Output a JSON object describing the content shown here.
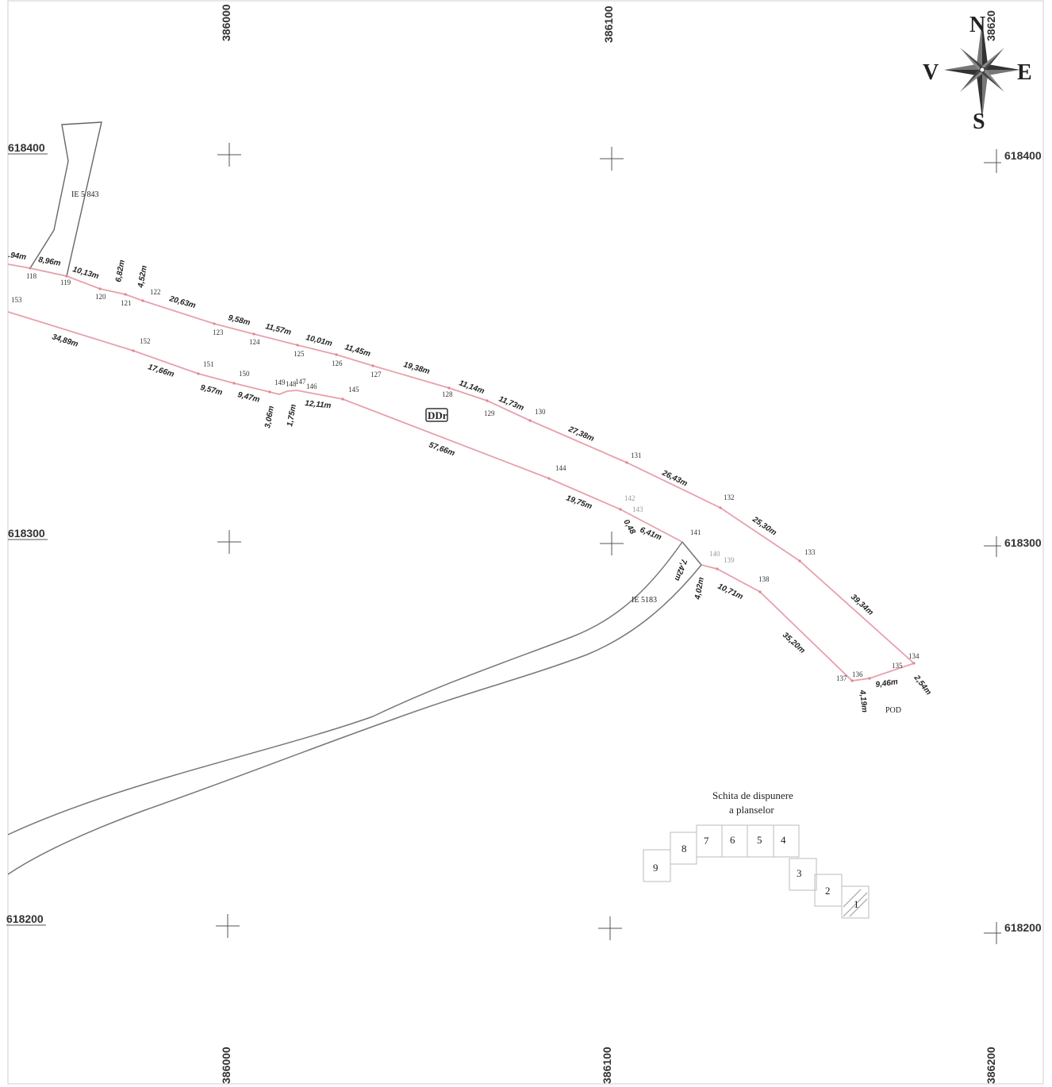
{
  "grid": {
    "easting_labels": [
      "386000",
      "386100",
      "38620",
      "386200"
    ],
    "northing_labels": [
      "618400",
      "618300",
      "618200"
    ]
  },
  "compass": {
    "north": "N",
    "south": "S",
    "east": "E",
    "west": "V"
  },
  "parcels": {
    "upper": "IE 5 843",
    "lower": "IE 5183",
    "road_label": "DDr",
    "bridge_label": "POD"
  },
  "upper_boundary": {
    "points": [
      "118",
      "119",
      "120",
      "121",
      "122",
      "123",
      "124",
      "125",
      "126",
      "127",
      "128",
      "129",
      "130",
      "131",
      "132",
      "133",
      "134"
    ],
    "segments": [
      ".94m",
      "8,96m",
      "10,13m",
      "6,82m",
      "4,52m",
      "20,63m",
      "9,58m",
      "11,57m",
      "10,01m",
      "11,45m",
      "19,38m",
      "11,14m",
      "11,73m",
      "27,38m",
      "26,43m",
      "25,30m",
      "39,34m",
      "2,54m"
    ]
  },
  "lower_boundary": {
    "points": [
      "153",
      "152",
      "151",
      "150",
      "149",
      "148",
      "147",
      "146",
      "145",
      "144",
      "142",
      "143",
      "141",
      "140",
      "139",
      "138",
      "137",
      "136",
      "135"
    ],
    "segments": [
      "34,89m",
      "17,66m",
      "9,57m",
      "9,47m",
      "3,06m",
      "1,75m",
      "12,11m",
      "57,66m",
      "19,75m",
      "0,48",
      "6,41m",
      "7,42m",
      "4,02m",
      "10,71m",
      "35,20m",
      "4,19m",
      "9,46m"
    ]
  },
  "legend": {
    "title_line1": "Schita de dispunere",
    "title_line2": "a planselor",
    "sheets": [
      "1",
      "2",
      "3",
      "4",
      "5",
      "6",
      "7",
      "8",
      "9"
    ]
  }
}
